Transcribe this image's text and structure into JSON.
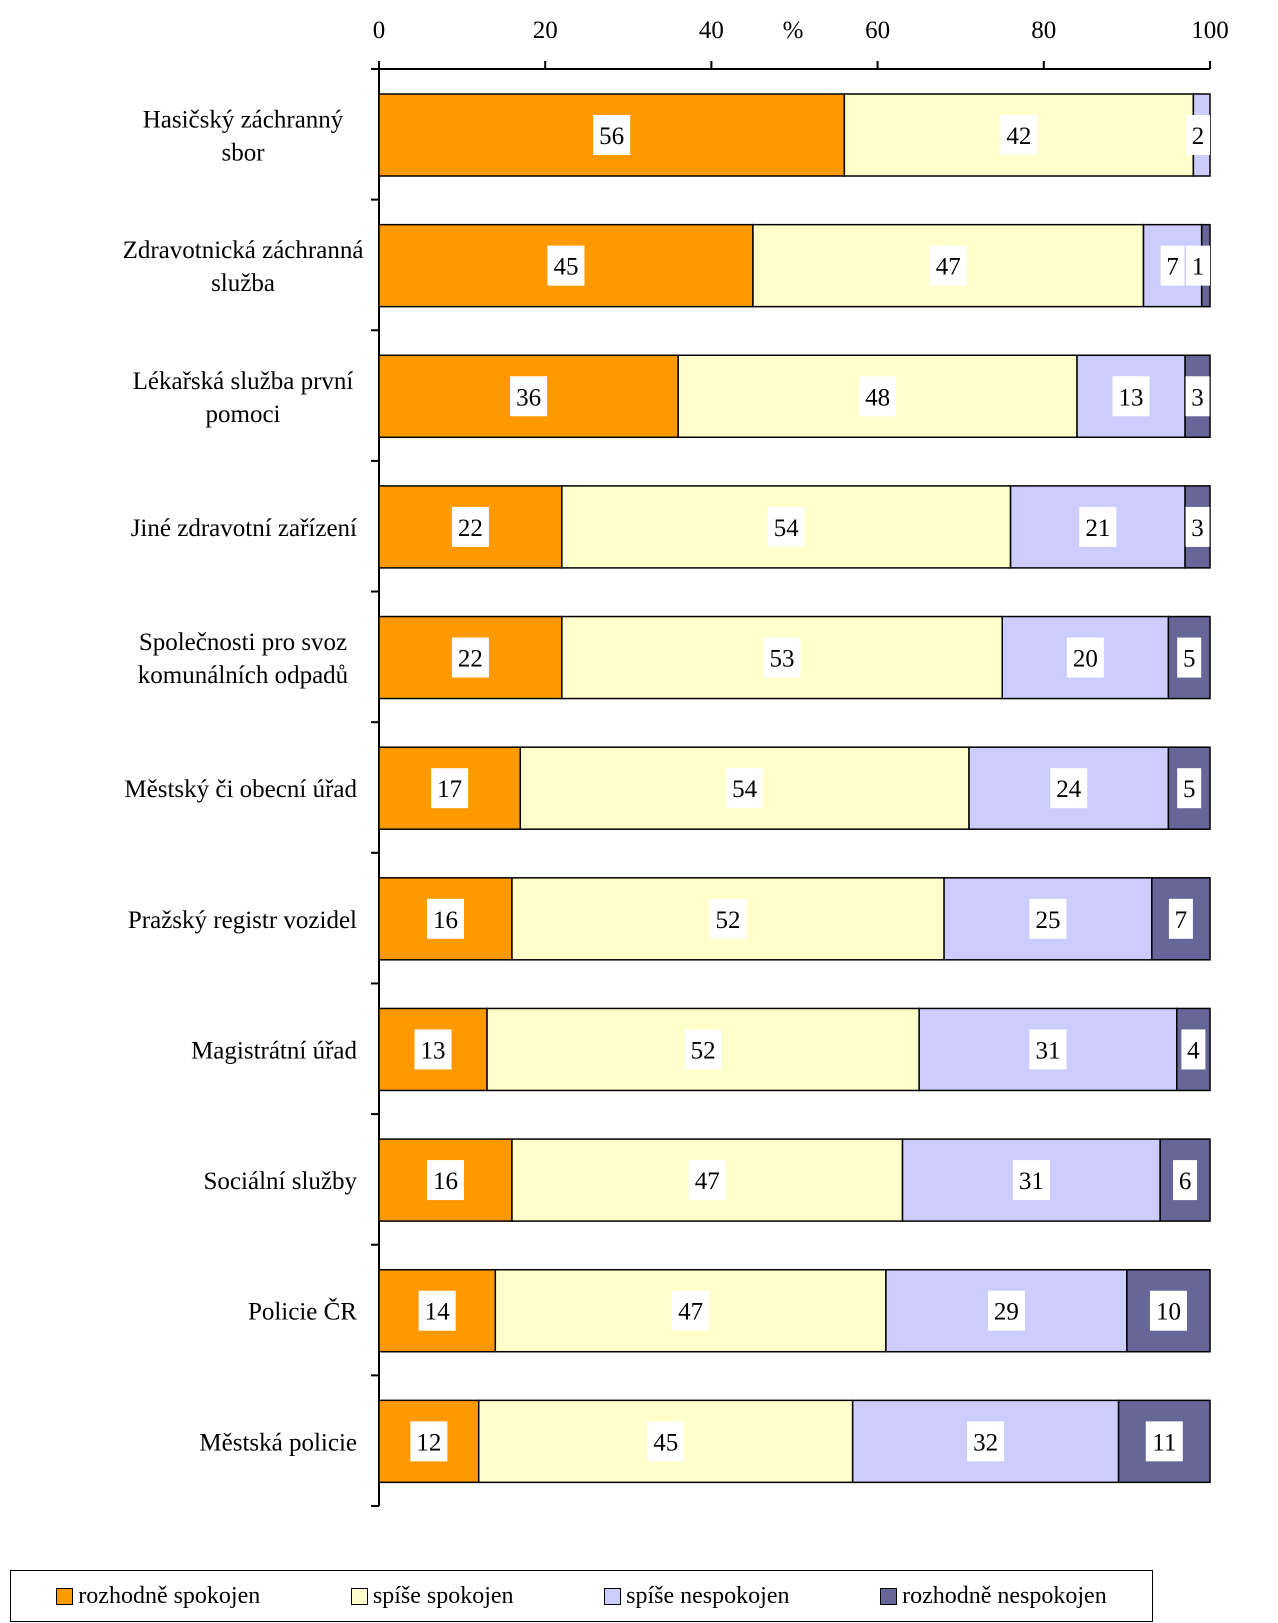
{
  "chart_data": {
    "type": "bar",
    "orientation": "horizontal",
    "stacked": true,
    "axis_unit_label": "%",
    "xlim": [
      0,
      100
    ],
    "xticks": [
      0,
      20,
      40,
      60,
      80,
      100
    ],
    "categories": [
      [
        "Hasičský záchranný",
        "sbor"
      ],
      [
        "Zdravotnická záchranná",
        "služba"
      ],
      [
        "Lékařská služba první",
        "pomoci"
      ],
      [
        "Jiné zdravotní zařízení"
      ],
      [
        "Společnosti pro svoz",
        "komunálních odpadů"
      ],
      [
        "Městský či obecní úřad"
      ],
      [
        "Pražský registr vozidel"
      ],
      [
        "Magistrátní úřad"
      ],
      [
        "Sociální služby"
      ],
      [
        "Policie ČR"
      ],
      [
        "Městská policie"
      ]
    ],
    "series": [
      {
        "name": "rozhodně spokojen",
        "color": "#ff9900",
        "values": [
          56,
          45,
          36,
          22,
          22,
          17,
          16,
          13,
          16,
          14,
          12
        ]
      },
      {
        "name": "spíše spokojen",
        "color": "#ffffcc",
        "values": [
          42,
          47,
          48,
          54,
          53,
          54,
          52,
          52,
          47,
          47,
          45
        ]
      },
      {
        "name": "spíše nespokojen",
        "color": "#ccccff",
        "values": [
          2,
          7,
          13,
          21,
          20,
          24,
          25,
          31,
          31,
          29,
          32
        ]
      },
      {
        "name": "rozhodně nespokojen",
        "color": "#666699",
        "values": [
          0,
          1,
          3,
          3,
          5,
          5,
          7,
          4,
          6,
          10,
          11
        ]
      }
    ],
    "legend_position": "bottom"
  }
}
